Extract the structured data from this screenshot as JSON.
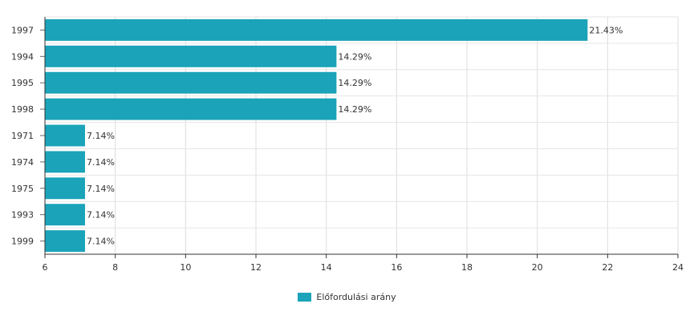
{
  "chart_data": {
    "type": "bar",
    "orientation": "horizontal",
    "categories": [
      "1997",
      "1994",
      "1995",
      "1998",
      "1971",
      "1974",
      "1975",
      "1993",
      "1999"
    ],
    "series": [
      {
        "name": "Előfordulási arány",
        "values": [
          21.43,
          14.29,
          14.29,
          14.29,
          7.14,
          7.14,
          7.14,
          7.14,
          7.14
        ],
        "labels": [
          "21.43%",
          "14.29%",
          "14.29%",
          "14.29%",
          "7.14%",
          "7.14%",
          "7.14%",
          "7.14%",
          "7.14%"
        ],
        "color": "#1aa3b9"
      }
    ],
    "xlim": [
      6,
      24
    ],
    "xticks": [
      6,
      8,
      10,
      12,
      14,
      16,
      18,
      20,
      22,
      24
    ],
    "grid": true,
    "legend": "bottom-center"
  }
}
